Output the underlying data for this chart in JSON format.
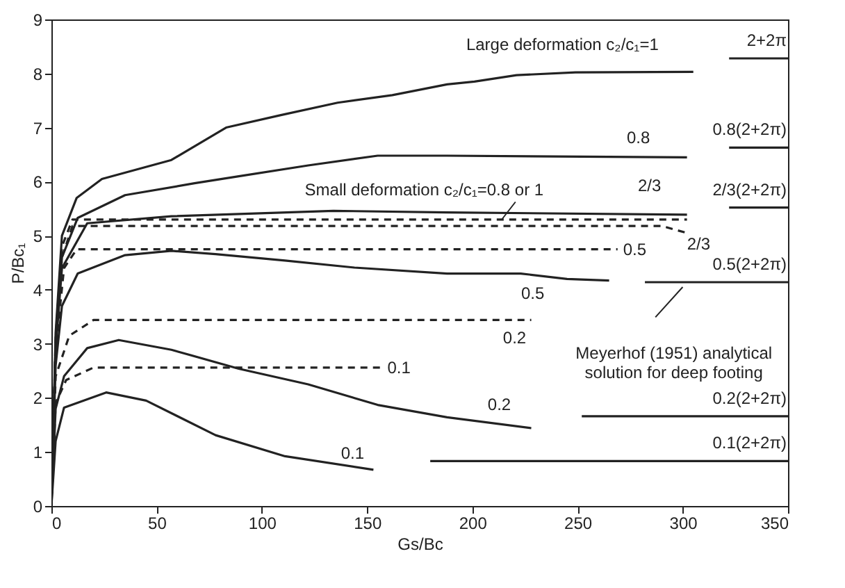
{
  "chart_data": {
    "type": "line",
    "xlabel": "Gs/Bc",
    "ylabel": "P/Bc₁",
    "xlim": [
      0,
      350
    ],
    "xticks": [
      0,
      50,
      100,
      150,
      200,
      250,
      300,
      350
    ],
    "ylim": [
      0,
      9
    ],
    "yticks": [
      0,
      1,
      2,
      3,
      4,
      5,
      6,
      7,
      8,
      9
    ],
    "grid": false,
    "marker": "none",
    "series": [
      {
        "name": "Large deformation c₂/c₁=1",
        "color": "#222222",
        "line_style": "solid",
        "x": [
          0,
          2,
          5,
          12,
          24,
          57,
          83,
          109,
          136,
          162,
          188,
          201,
          221,
          249,
          305
        ],
        "values": [
          0,
          3.2,
          5.0,
          5.7,
          6.05,
          6.4,
          7.0,
          7.23,
          7.46,
          7.6,
          7.8,
          7.85,
          7.97,
          8.02,
          8.03
        ]
      },
      {
        "name": "0.8",
        "color": "#222222",
        "line_style": "solid",
        "x": [
          0,
          2,
          5,
          12.5,
          35,
          68,
          89,
          122,
          155,
          188,
          302
        ],
        "values": [
          0,
          3.0,
          4.6,
          5.33,
          5.75,
          5.97,
          6.1,
          6.3,
          6.48,
          6.48,
          6.45
        ]
      },
      {
        "name": "2/3",
        "color": "#222222",
        "line_style": "solid",
        "x": [
          0,
          2,
          5,
          17,
          57,
          134,
          188,
          302
        ],
        "values": [
          0,
          2.9,
          4.4,
          5.23,
          5.36,
          5.46,
          5.43,
          5.39
        ]
      },
      {
        "color": "#222222",
        "line_style": "dashed",
        "x": [
          0,
          2,
          5,
          10,
          302
        ],
        "values": [
          0,
          3.1,
          4.8,
          5.3,
          5.3
        ]
      },
      {
        "name": "2/3",
        "color": "#222222",
        "line_style": "dashed",
        "x": [
          0,
          2,
          5,
          10,
          290,
          302
        ],
        "values": [
          0,
          3.0,
          4.6,
          5.18,
          5.18,
          5.05
        ]
      },
      {
        "name": "0.5",
        "color": "#222222",
        "line_style": "dashed",
        "x": [
          0,
          2,
          6,
          12,
          269
        ],
        "values": [
          0,
          2.9,
          4.4,
          4.75,
          4.75
        ]
      },
      {
        "name": "0.5",
        "color": "#222222",
        "line_style": "solid",
        "x": [
          0,
          2,
          5,
          12.5,
          35,
          57,
          78,
          111,
          144,
          188,
          223,
          245,
          265
        ],
        "values": [
          0,
          2.6,
          3.7,
          4.3,
          4.64,
          4.72,
          4.66,
          4.54,
          4.41,
          4.3,
          4.3,
          4.2,
          4.17
        ]
      },
      {
        "name": "0.2",
        "color": "#222222",
        "line_style": "dashed",
        "x": [
          0,
          2,
          8.5,
          20,
          228
        ],
        "values": [
          0,
          2.4,
          3.15,
          3.44,
          3.44
        ]
      },
      {
        "name": "0.1",
        "color": "#222222",
        "line_style": "dashed",
        "x": [
          0,
          2,
          7,
          20,
          157
        ],
        "values": [
          0,
          1.9,
          2.33,
          2.56,
          2.56
        ]
      },
      {
        "name": "0.2",
        "color": "#222222",
        "line_style": "solid",
        "x": [
          0,
          2,
          6,
          17,
          32,
          57,
          89,
          122,
          155,
          188,
          228
        ],
        "values": [
          0,
          1.8,
          2.4,
          2.92,
          3.07,
          2.89,
          2.54,
          2.25,
          1.87,
          1.64,
          1.44
        ]
      },
      {
        "name": "0.1",
        "color": "#222222",
        "line_style": "solid",
        "x": [
          0,
          2,
          6,
          26,
          45,
          78,
          111,
          153
        ],
        "values": [
          0,
          1.2,
          1.82,
          2.1,
          1.95,
          1.31,
          0.92,
          0.67
        ]
      },
      {
        "name": "2+2π",
        "color": "#222222",
        "line_style": "solid",
        "x": [
          322,
          350
        ],
        "values": [
          8.28,
          8.28
        ]
      },
      {
        "name": "0.8(2+2π)",
        "color": "#222222",
        "line_style": "solid",
        "x": [
          322,
          350
        ],
        "values": [
          6.63,
          6.63
        ]
      },
      {
        "name": "2/3(2+2π)",
        "color": "#222222",
        "line_style": "solid",
        "x": [
          322,
          350
        ],
        "values": [
          5.52,
          5.52
        ]
      },
      {
        "name": "0.5(2+2π)",
        "color": "#222222",
        "line_style": "solid",
        "x": [
          282,
          350
        ],
        "values": [
          4.14,
          4.14
        ]
      },
      {
        "name": "0.2(2+2π)",
        "color": "#222222",
        "line_style": "solid",
        "x": [
          252,
          350
        ],
        "values": [
          1.66,
          1.66
        ]
      },
      {
        "name": "0.1(2+2π)",
        "color": "#222222",
        "line_style": "solid",
        "x": [
          180,
          350
        ],
        "values": [
          0.83,
          0.83
        ]
      }
    ],
    "annotations": [
      "Small deformation c₂/c₁=0.8 or 1",
      "Meyerhof (1951) analytical\nsolution for deep footing"
    ]
  }
}
